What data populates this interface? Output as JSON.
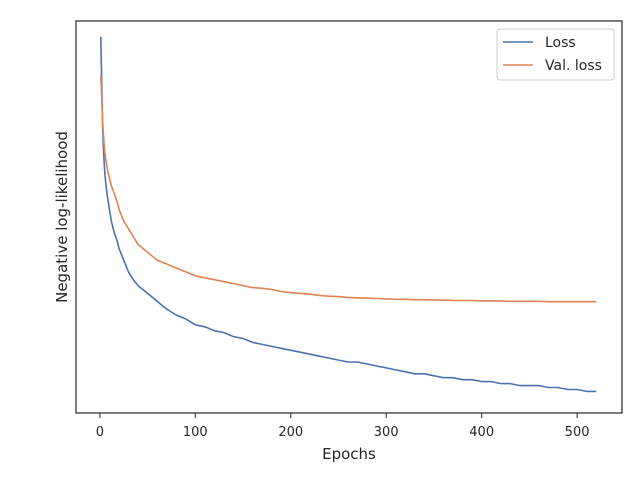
{
  "chart_data": {
    "type": "line",
    "title": "",
    "xlabel": "Epochs",
    "ylabel": "Negative log-likelihood",
    "xlim": [
      -25,
      547
    ],
    "ylim": [
      0,
      1
    ],
    "x_ticks": [
      0,
      100,
      200,
      300,
      400,
      500
    ],
    "y_ticks": [],
    "grid": false,
    "legend": {
      "placement": "top-right",
      "entries": [
        "Loss",
        "Val. loss"
      ]
    },
    "series": [
      {
        "name": "Loss",
        "color": "#4c72b0",
        "x": [
          1,
          2,
          3,
          4,
          5,
          6,
          8,
          10,
          12,
          15,
          18,
          20,
          25,
          30,
          35,
          40,
          45,
          50,
          55,
          60,
          65,
          70,
          80,
          90,
          100,
          110,
          120,
          130,
          140,
          150,
          160,
          170,
          180,
          190,
          200,
          210,
          220,
          230,
          240,
          250,
          260,
          270,
          280,
          290,
          300,
          310,
          320,
          330,
          340,
          350,
          360,
          370,
          380,
          390,
          400,
          410,
          420,
          430,
          440,
          450,
          460,
          470,
          480,
          490,
          500,
          510,
          520
        ],
        "y": [
          0.96,
          0.83,
          0.72,
          0.66,
          0.62,
          0.59,
          0.55,
          0.52,
          0.49,
          0.46,
          0.44,
          0.42,
          0.39,
          0.36,
          0.34,
          0.325,
          0.315,
          0.305,
          0.295,
          0.285,
          0.275,
          0.265,
          0.25,
          0.24,
          0.225,
          0.22,
          0.21,
          0.205,
          0.195,
          0.19,
          0.18,
          0.175,
          0.17,
          0.165,
          0.16,
          0.155,
          0.15,
          0.145,
          0.14,
          0.135,
          0.13,
          0.13,
          0.125,
          0.12,
          0.115,
          0.11,
          0.105,
          0.1,
          0.1,
          0.095,
          0.09,
          0.09,
          0.085,
          0.085,
          0.08,
          0.08,
          0.075,
          0.075,
          0.07,
          0.07,
          0.07,
          0.065,
          0.065,
          0.06,
          0.06,
          0.055,
          0.055
        ]
      },
      {
        "name": "Val. loss",
        "color": "#dd8452",
        "x": [
          1,
          2,
          3,
          4,
          5,
          6,
          8,
          10,
          12,
          15,
          18,
          20,
          25,
          30,
          35,
          40,
          45,
          50,
          55,
          60,
          65,
          70,
          80,
          90,
          100,
          110,
          120,
          130,
          140,
          150,
          160,
          170,
          180,
          190,
          200,
          210,
          220,
          230,
          240,
          250,
          260,
          270,
          280,
          290,
          300,
          310,
          320,
          330,
          340,
          350,
          360,
          370,
          380,
          390,
          400,
          410,
          420,
          430,
          440,
          450,
          460,
          470,
          480,
          490,
          500,
          510,
          520
        ],
        "y": [
          0.86,
          0.8,
          0.74,
          0.7,
          0.67,
          0.65,
          0.62,
          0.6,
          0.58,
          0.56,
          0.54,
          0.52,
          0.49,
          0.47,
          0.45,
          0.43,
          0.42,
          0.41,
          0.4,
          0.39,
          0.385,
          0.38,
          0.37,
          0.36,
          0.35,
          0.345,
          0.34,
          0.335,
          0.33,
          0.325,
          0.32,
          0.318,
          0.315,
          0.31,
          0.307,
          0.305,
          0.303,
          0.3,
          0.298,
          0.297,
          0.295,
          0.294,
          0.293,
          0.292,
          0.291,
          0.29,
          0.29,
          0.289,
          0.289,
          0.288,
          0.288,
          0.287,
          0.287,
          0.287,
          0.286,
          0.286,
          0.286,
          0.285,
          0.285,
          0.285,
          0.285,
          0.284,
          0.284,
          0.284,
          0.284,
          0.284,
          0.284
        ]
      }
    ]
  }
}
